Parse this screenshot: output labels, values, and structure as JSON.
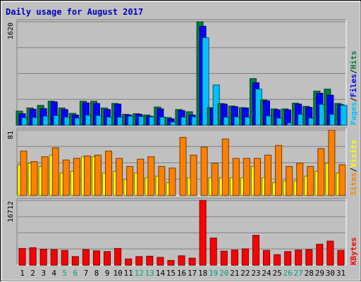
{
  "chart_data": {
    "type": "bar",
    "title": "Daily usage for August 2017",
    "categories": [
      "1",
      "2",
      "3",
      "4",
      "5",
      "6",
      "7",
      "8",
      "9",
      "10",
      "11",
      "12",
      "13",
      "14",
      "15",
      "16",
      "17",
      "18",
      "19",
      "20",
      "21",
      "22",
      "23",
      "24",
      "25",
      "26",
      "27",
      "28",
      "29",
      "30",
      "31"
    ],
    "weekend_days": [
      "5",
      "6",
      "12",
      "13",
      "19",
      "20",
      "26",
      "27"
    ],
    "panels": [
      {
        "name": "hits-files-pages",
        "max_label": "1620",
        "ymax": 1620,
        "legend": [
          "Pages",
          "Files",
          "Hits"
        ],
        "series": [
          {
            "name": "Hits",
            "color": "#008040",
            "values": [
              220,
              270,
              310,
              375,
              270,
              185,
              375,
              375,
              270,
              340,
              170,
              180,
              160,
              285,
              120,
              245,
              210,
              1620,
              275,
              340,
              300,
              275,
              730,
              395,
              255,
              255,
              345,
              295,
              535,
              565,
              340
            ]
          },
          {
            "name": "Files",
            "color": "#0000ff",
            "values": [
              180,
              250,
              260,
              365,
              245,
              160,
              350,
              340,
              245,
              330,
              160,
              170,
              140,
              255,
              100,
              230,
              160,
              1550,
              260,
              330,
              290,
              270,
              665,
              380,
              240,
              240,
              330,
              280,
              500,
              470,
              320
            ]
          },
          {
            "name": "Pages",
            "color": "#00c0ff",
            "values": [
              115,
              120,
              140,
              150,
              125,
              110,
              155,
              150,
              125,
              125,
              140,
              135,
              130,
              125,
              50,
              125,
              130,
              1370,
              630,
              125,
              130,
              125,
              565,
              145,
              110,
              35,
              170,
              110,
              325,
              170,
              310
            ]
          }
        ]
      },
      {
        "name": "visits-sites",
        "max_label": "81",
        "ymax": 81,
        "legend": [
          "Sites",
          "Visits"
        ],
        "series": [
          {
            "name": "Visits",
            "color": "#ffff00",
            "values": [
              38,
              40,
              36,
              50,
              28,
              30,
              48,
              48,
              28,
              30,
              20,
              28,
              22,
              24,
              16,
              0,
              22,
              0,
              22,
              22,
              22,
              22,
              36,
              22,
              16,
              18,
              18,
              24,
              30,
              40,
              28
            ]
          },
          {
            "name": "Sites",
            "color": "#ff8000",
            "values": [
              55,
              42,
              48,
              59,
              44,
              46,
              49,
              50,
              55,
              46,
              36,
              45,
              48,
              36,
              34,
              72,
              50,
              60,
              40,
              70,
              46,
              46,
              46,
              50,
              62,
              36,
              40,
              36,
              58,
              81,
              38
            ]
          }
        ]
      },
      {
        "name": "kbytes",
        "max_label": "16712",
        "ymax": 16712,
        "legend": [
          "KBytes"
        ],
        "series": [
          {
            "name": "KBytes",
            "color": "#ff0000",
            "values": [
              4300,
              4500,
              4100,
              4000,
              3800,
              2200,
              4000,
              3700,
              3500,
              4300,
              1600,
              2200,
              2300,
              2000,
              1200,
              2400,
              1800,
              16712,
              7000,
              3600,
              3900,
              4200,
              7700,
              3800,
              2700,
              3500,
              3900,
              4000,
              5400,
              6200,
              3800
            ]
          }
        ]
      }
    ]
  }
}
